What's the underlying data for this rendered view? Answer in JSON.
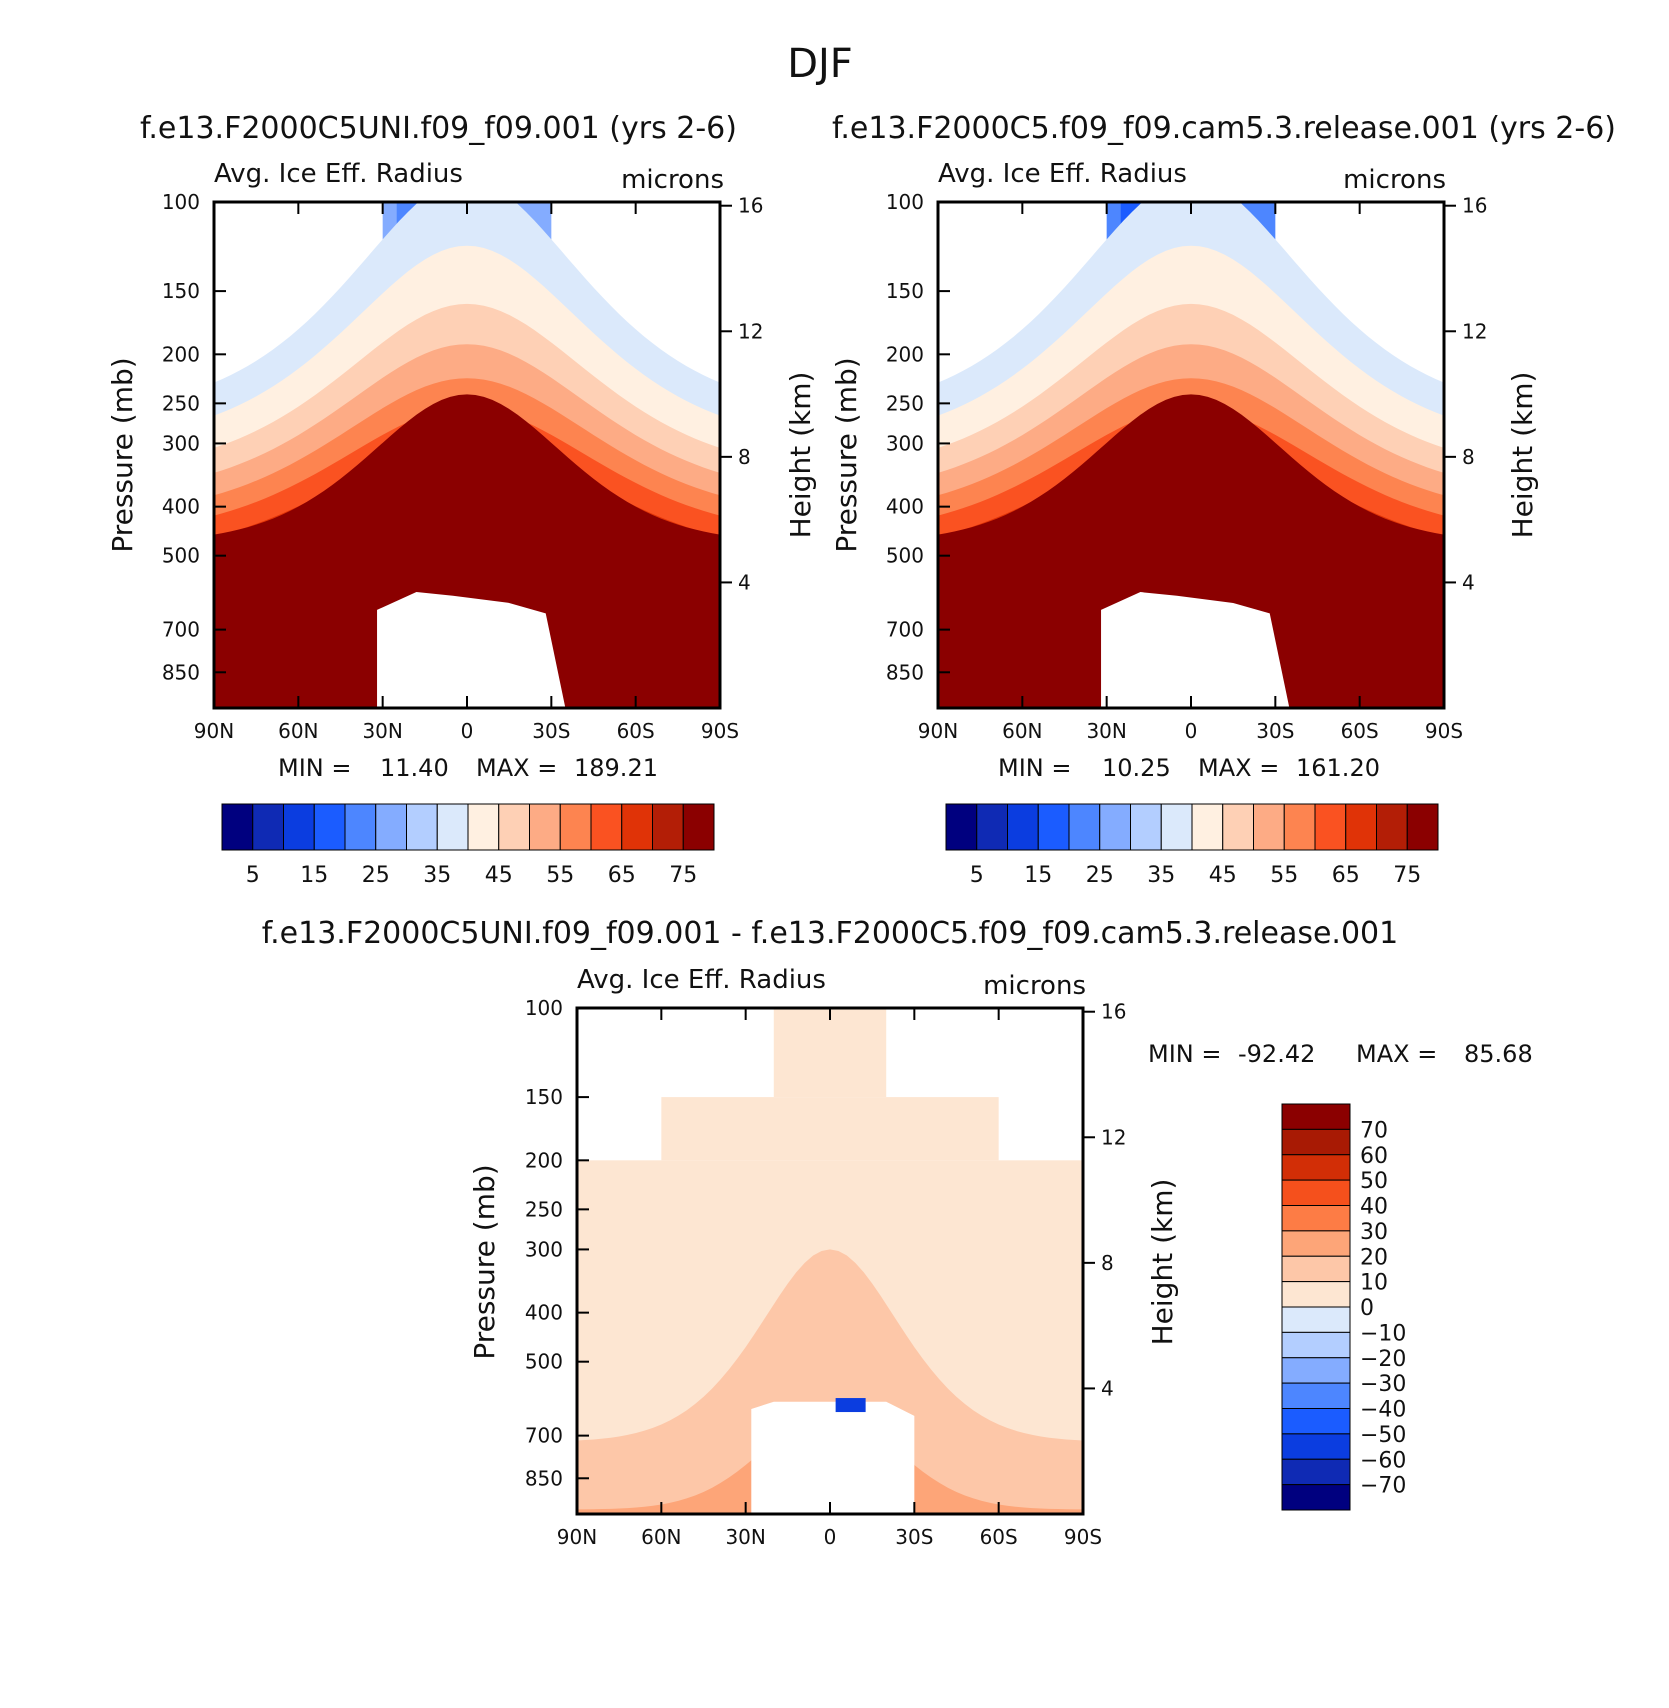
{
  "figure_title": "DJF",
  "chart_data": [
    {
      "type": "heatmap",
      "panel_title": "f.e13.F2000C5UNI.f09_f09.001 (yrs 2-6)",
      "variable_label": "Avg. Ice Eff. Radius",
      "units": "microns",
      "ylabel": "Pressure (mb)",
      "ylabel_right": "Height (km)",
      "x_ticks": [
        "90N",
        "60N",
        "30N",
        "0",
        "30S",
        "60S",
        "90S"
      ],
      "y_ticks": [
        "100",
        "150",
        "200",
        "250",
        "300",
        "400",
        "500",
        "700",
        "850"
      ],
      "height_ticks": [
        "16",
        "12",
        "8",
        "4"
      ],
      "xlim": [
        90,
        -90
      ],
      "ylim": [
        100,
        1000
      ],
      "min_label": "MIN =",
      "min_value": "11.40",
      "max_label": "MAX =",
      "max_value": "189.21",
      "colorbar_levels": [
        5,
        10,
        15,
        20,
        25,
        30,
        35,
        40,
        45,
        50,
        55,
        60,
        65,
        70,
        75
      ],
      "colorbar_labels": [
        "5",
        "15",
        "25",
        "35",
        "45",
        "55",
        "65",
        "75"
      ],
      "colors": [
        "#00007f",
        "#0f2ab4",
        "#0b3de0",
        "#1b5cff",
        "#4d86ff",
        "#84acff",
        "#b3ceff",
        "#dbe9fb",
        "#fff0e1",
        "#fed0b5",
        "#fdab85",
        "#fd8450",
        "#fa5221",
        "#e03307",
        "#b31e06",
        "#8b0000"
      ]
    },
    {
      "type": "heatmap",
      "panel_title": "f.e13.F2000C5.f09_f09.cam5.3.release.001 (yrs 2-6)",
      "variable_label": "Avg. Ice Eff. Radius",
      "units": "microns",
      "ylabel": "Pressure (mb)",
      "ylabel_right": "Height (km)",
      "x_ticks": [
        "90N",
        "60N",
        "30N",
        "0",
        "30S",
        "60S",
        "90S"
      ],
      "y_ticks": [
        "100",
        "150",
        "200",
        "250",
        "300",
        "400",
        "500",
        "700",
        "850"
      ],
      "height_ticks": [
        "16",
        "12",
        "8",
        "4"
      ],
      "xlim": [
        90,
        -90
      ],
      "ylim": [
        100,
        1000
      ],
      "min_label": "MIN =",
      "min_value": "10.25",
      "max_label": "MAX =",
      "max_value": "161.20",
      "colorbar_levels": [
        5,
        10,
        15,
        20,
        25,
        30,
        35,
        40,
        45,
        50,
        55,
        60,
        65,
        70,
        75
      ],
      "colorbar_labels": [
        "5",
        "15",
        "25",
        "35",
        "45",
        "55",
        "65",
        "75"
      ],
      "colors": [
        "#00007f",
        "#0f2ab4",
        "#0b3de0",
        "#1b5cff",
        "#4d86ff",
        "#84acff",
        "#b3ceff",
        "#dbe9fb",
        "#fff0e1",
        "#fed0b5",
        "#fdab85",
        "#fd8450",
        "#fa5221",
        "#e03307",
        "#b31e06",
        "#8b0000"
      ]
    },
    {
      "type": "heatmap",
      "panel_title": "f.e13.F2000C5UNI.f09_f09.001 - f.e13.F2000C5.f09_f09.cam5.3.release.001",
      "variable_label": "Avg. Ice Eff. Radius",
      "units": "microns",
      "ylabel": "Pressure (mb)",
      "ylabel_right": "Height (km)",
      "x_ticks": [
        "90N",
        "60N",
        "30N",
        "0",
        "30S",
        "60S",
        "90S"
      ],
      "y_ticks": [
        "100",
        "150",
        "200",
        "250",
        "300",
        "400",
        "500",
        "700",
        "850"
      ],
      "height_ticks": [
        "16",
        "12",
        "8",
        "4"
      ],
      "xlim": [
        90,
        -90
      ],
      "ylim": [
        100,
        1000
      ],
      "min_label": "MIN =",
      "min_value": "-92.42",
      "max_label": "MAX =",
      "max_value": "85.68",
      "colorbar_levels": [
        -70,
        -60,
        -50,
        -40,
        -30,
        -20,
        -10,
        0,
        10,
        20,
        30,
        40,
        50,
        60,
        70
      ],
      "colorbar_labels": [
        "70",
        "60",
        "50",
        "40",
        "30",
        "20",
        "10",
        "0",
        "-10",
        "-20",
        "-30",
        "-40",
        "-50",
        "-60",
        "-70"
      ],
      "colors": [
        "#00007f",
        "#0f2ab4",
        "#0b3de0",
        "#1b5cff",
        "#4d86ff",
        "#84acff",
        "#b3ceff",
        "#dbe9fb",
        "#fde6d2",
        "#fdc7a8",
        "#fda578",
        "#fd7c45",
        "#f5501c",
        "#d22e06",
        "#a81a04",
        "#8b0000"
      ]
    }
  ]
}
